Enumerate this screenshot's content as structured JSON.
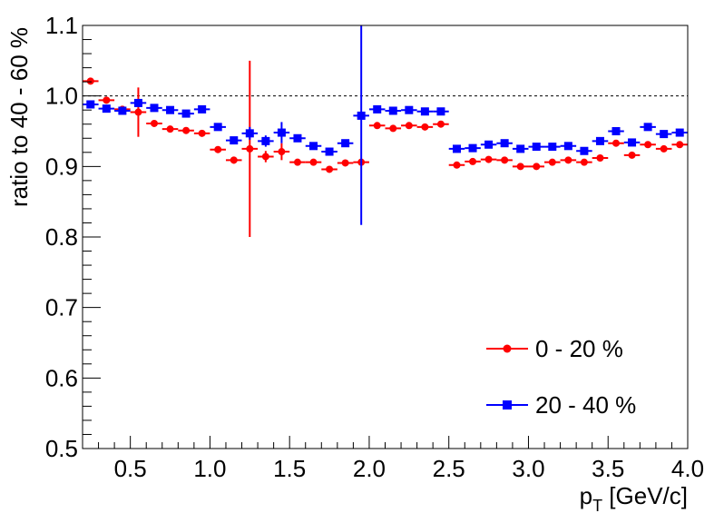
{
  "chart_data": {
    "type": "scatter",
    "title": "",
    "xlabel_main": "p",
    "xlabel_sub": "T",
    "xlabel_unit": " [GeV/c]",
    "ylabel": "ratio to 40 - 60 %",
    "xlim": [
      0.2,
      4.0
    ],
    "ylim": [
      0.5,
      1.1
    ],
    "x_ticks": [
      "0.5",
      "1.0",
      "1.5",
      "2.0",
      "2.5",
      "3.0",
      "3.5",
      "4.0"
    ],
    "y_ticks": [
      "0.5",
      "0.6",
      "0.7",
      "0.8",
      "0.9",
      "1.0",
      "1.1"
    ],
    "reference_line": 1.0,
    "legend_position": "bottom-right",
    "grid": false,
    "series": [
      {
        "name": "0 - 20 %",
        "color": "#ff0000",
        "marker": "circle",
        "x": [
          0.25,
          0.35,
          0.45,
          0.55,
          0.65,
          0.75,
          0.85,
          0.95,
          1.05,
          1.15,
          1.25,
          1.35,
          1.45,
          1.55,
          1.65,
          1.75,
          1.85,
          1.95,
          2.05,
          2.15,
          2.25,
          2.35,
          2.45,
          2.55,
          2.65,
          2.75,
          2.85,
          2.95,
          3.05,
          3.15,
          3.25,
          3.35,
          3.45,
          3.55,
          3.65,
          3.75,
          3.85,
          3.95
        ],
        "y": [
          1.021,
          0.994,
          0.981,
          0.977,
          0.961,
          0.953,
          0.951,
          0.947,
          0.924,
          0.909,
          0.925,
          0.914,
          0.921,
          0.906,
          0.906,
          0.896,
          0.905,
          0.906,
          0.958,
          0.954,
          0.958,
          0.956,
          0.96,
          0.902,
          0.907,
          0.91,
          0.909,
          0.9,
          0.9,
          0.906,
          0.909,
          0.906,
          0.912,
          0.933,
          0.916,
          0.931,
          0.925,
          0.931
        ],
        "yerr": [
          0.004,
          0.003,
          0.003,
          0.035,
          0.003,
          0.003,
          0.003,
          0.004,
          0.004,
          0.005,
          0.125,
          0.008,
          0.012,
          0.004,
          0.004,
          0.004,
          0.004,
          0.004,
          0.003,
          0.003,
          0.003,
          0.003,
          0.003,
          0.003,
          0.003,
          0.003,
          0.003,
          0.003,
          0.003,
          0.003,
          0.003,
          0.003,
          0.003,
          0.003,
          0.003,
          0.003,
          0.003,
          0.003
        ]
      },
      {
        "name": "20 - 40 %",
        "color": "#0000ff",
        "marker": "square",
        "x": [
          0.25,
          0.35,
          0.45,
          0.55,
          0.65,
          0.75,
          0.85,
          0.95,
          1.05,
          1.15,
          1.25,
          1.35,
          1.45,
          1.55,
          1.65,
          1.75,
          1.85,
          1.95,
          2.05,
          2.15,
          2.25,
          2.35,
          2.45,
          2.55,
          2.65,
          2.75,
          2.85,
          2.95,
          3.05,
          3.15,
          3.25,
          3.35,
          3.45,
          3.55,
          3.65,
          3.75,
          3.85,
          3.95
        ],
        "y": [
          0.988,
          0.982,
          0.979,
          0.99,
          0.983,
          0.98,
          0.975,
          0.981,
          0.956,
          0.937,
          0.947,
          0.936,
          0.948,
          0.94,
          0.929,
          0.921,
          0.933,
          0.972,
          0.981,
          0.979,
          0.98,
          0.978,
          0.978,
          0.925,
          0.926,
          0.931,
          0.933,
          0.925,
          0.928,
          0.928,
          0.929,
          0.922,
          0.936,
          0.95,
          0.934,
          0.956,
          0.946,
          0.948
        ],
        "yerr": [
          0.004,
          0.003,
          0.003,
          0.004,
          0.003,
          0.003,
          0.003,
          0.004,
          0.004,
          0.005,
          0.009,
          0.008,
          0.015,
          0.004,
          0.004,
          0.004,
          0.004,
          0.155,
          0.003,
          0.003,
          0.003,
          0.003,
          0.003,
          0.003,
          0.003,
          0.003,
          0.003,
          0.003,
          0.003,
          0.003,
          0.003,
          0.003,
          0.003,
          0.003,
          0.003,
          0.003,
          0.003,
          0.003
        ]
      }
    ]
  }
}
